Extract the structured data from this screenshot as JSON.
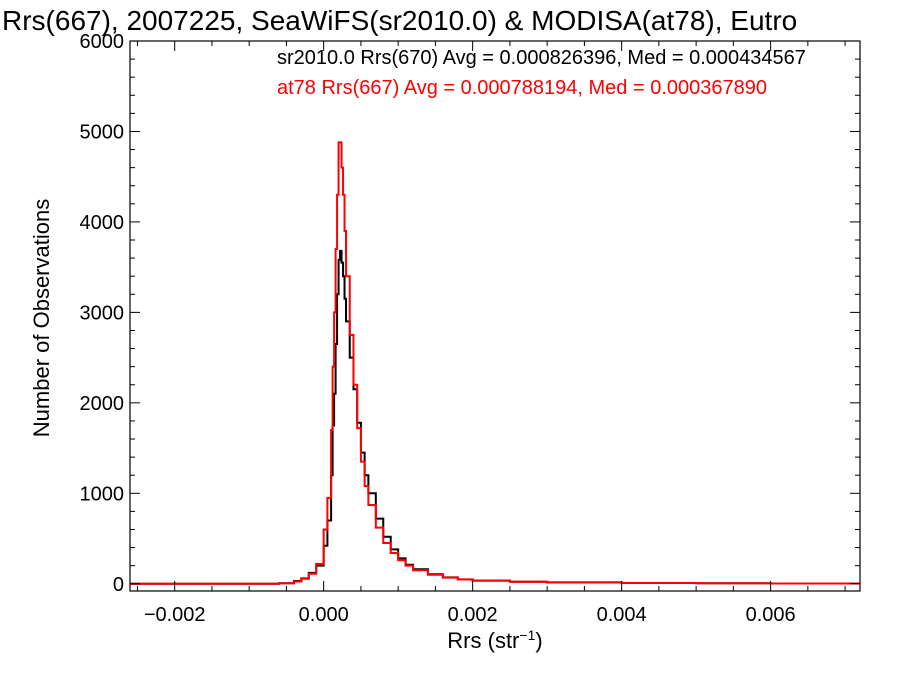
{
  "chart_data": {
    "type": "line",
    "title": "Rrs(667), 2007225, SeaWiFS(sr2010.0) & MODISA(at78), Eutro",
    "xlabel_main": "Rrs (str",
    "xlabel_sup": "−1",
    "xlabel_close": ")",
    "ylabel": "Number of Observations",
    "xlim": [
      -0.0026,
      0.0072
    ],
    "ylim": [
      -80,
      6000
    ],
    "xticks": [
      -0.002,
      0.0,
      0.002,
      0.004,
      0.006
    ],
    "xtick_labels": [
      "−0.002",
      "0.000",
      "0.002",
      "0.004",
      "0.006"
    ],
    "yticks": [
      0,
      1000,
      2000,
      3000,
      4000,
      5000,
      6000
    ],
    "ytick_labels": [
      "0",
      "1000",
      "2000",
      "3000",
      "4000",
      "5000",
      "6000"
    ],
    "legend_placement": "top-right",
    "series": [
      {
        "key": "sr2010",
        "color": "#000000",
        "legend": "sr2010.0 Rrs(670) Avg = 0.000826396, Med = 0.000434567",
        "x": [
          -0.0026,
          -0.0006,
          -0.0004,
          -0.0003,
          -0.0002,
          -0.0001,
          0.0,
          5e-05,
          0.0001,
          0.00012,
          0.00014,
          0.00016,
          0.00018,
          0.0002,
          0.00022,
          0.00024,
          0.00026,
          0.00028,
          0.0003,
          0.00035,
          0.0004,
          0.00045,
          0.0005,
          0.00055,
          0.0006,
          0.0007,
          0.0008,
          0.0009,
          0.001,
          0.0011,
          0.0012,
          0.0014,
          0.0016,
          0.0018,
          0.002,
          0.0025,
          0.003,
          0.004,
          0.005,
          0.006,
          0.0072
        ],
        "y": [
          0,
          5,
          30,
          60,
          120,
          200,
          420,
          700,
          1200,
          1750,
          2100,
          2650,
          3200,
          3580,
          3680,
          3550,
          3400,
          3150,
          2900,
          2500,
          2150,
          1780,
          1450,
          1200,
          1000,
          720,
          520,
          380,
          280,
          210,
          160,
          105,
          70,
          48,
          35,
          22,
          15,
          8,
          5,
          3,
          2
        ]
      },
      {
        "key": "at78",
        "color": "#ff0000",
        "legend": "at78 Rrs(667) Avg = 0.000788194, Med = 0.000367890",
        "x": [
          -0.0026,
          -0.0006,
          -0.0004,
          -0.0003,
          -0.0002,
          -0.0001,
          0.0,
          5e-05,
          0.0001,
          0.00012,
          0.00014,
          0.00016,
          0.00018,
          0.0002,
          0.00022,
          0.00024,
          0.00026,
          0.00028,
          0.0003,
          0.00035,
          0.0004,
          0.00045,
          0.0005,
          0.00055,
          0.0006,
          0.0007,
          0.0008,
          0.0009,
          0.001,
          0.0011,
          0.0012,
          0.0014,
          0.0016,
          0.0018,
          0.002,
          0.0025,
          0.003,
          0.004,
          0.005,
          0.006,
          0.0072
        ],
        "y": [
          0,
          5,
          25,
          55,
          110,
          220,
          600,
          950,
          1700,
          2400,
          3000,
          3700,
          4300,
          4880,
          4880,
          4600,
          4300,
          3900,
          3400,
          2750,
          2200,
          1720,
          1350,
          1080,
          870,
          620,
          450,
          340,
          260,
          200,
          150,
          100,
          68,
          47,
          35,
          22,
          15,
          8,
          5,
          3,
          2
        ]
      }
    ]
  }
}
